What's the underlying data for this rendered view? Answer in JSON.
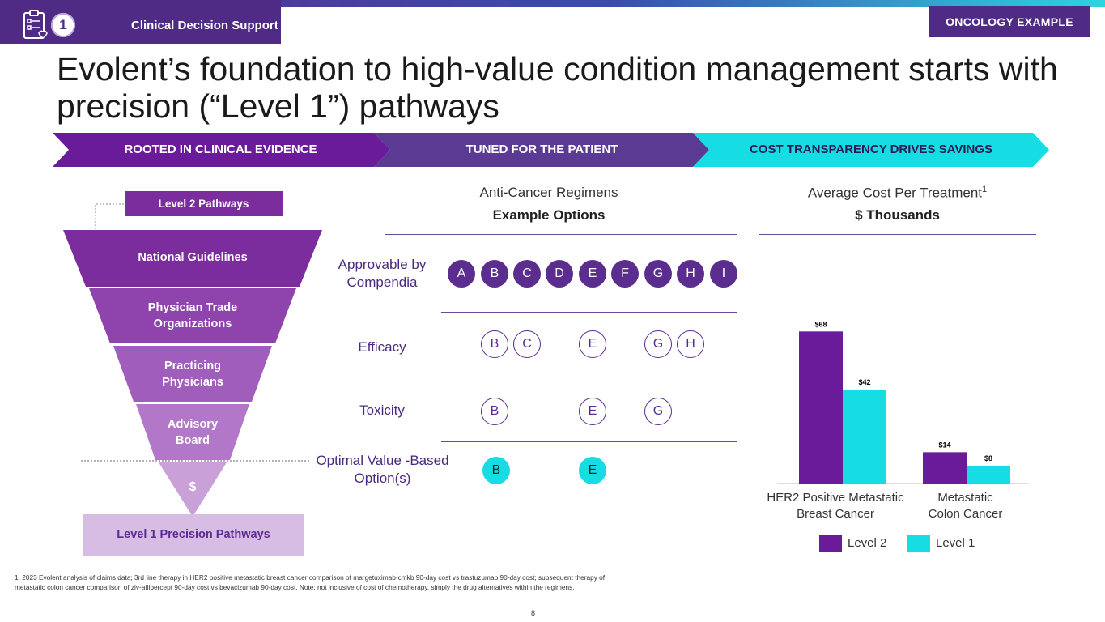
{
  "header": {
    "section_label": "Clinical Decision Support",
    "section_number": "1",
    "badge": "ONCOLOGY EXAMPLE"
  },
  "title": "Evolent’s foundation to high-value condition management starts with precision (“Level 1”) pathways",
  "chevrons": [
    "ROOTED IN CLINICAL EVIDENCE",
    "TUNED FOR THE PATIENT",
    "COST TRANSPARENCY DRIVES SAVINGS"
  ],
  "funnel": {
    "level2_label": "Level 2 Pathways",
    "layers": [
      "National Guidelines",
      "Physician Trade Organizations",
      "Practicing Physicians",
      "Advisory Board",
      "$"
    ],
    "level1_label": "Level 1 Precision Pathways"
  },
  "regimens": {
    "header": "Anti-Cancer Regimens",
    "subheader": "Example Options",
    "rows": [
      {
        "label": "Approvable by Compendia",
        "items": [
          "A",
          "B",
          "C",
          "D",
          "E",
          "F",
          "G",
          "H",
          "I"
        ]
      },
      {
        "label": "Efficacy",
        "items": [
          "B",
          "C",
          "E",
          "G",
          "H"
        ]
      },
      {
        "label": "Toxicity",
        "items": [
          "B",
          "E",
          "G"
        ]
      },
      {
        "label": "Optimal Value -Based Option(s)",
        "items": [
          "B",
          "E"
        ]
      }
    ]
  },
  "cost": {
    "header": "Average Cost Per Treatment",
    "header_sup": "1",
    "subheader": "$ Thousands"
  },
  "chart_data": {
    "type": "bar",
    "title": "Average Cost Per Treatment ($ Thousands)",
    "categories": [
      "HER2 Positive Metastatic Breast  Cancer",
      "Metastatic Colon Cancer"
    ],
    "series": [
      {
        "name": "Level 2",
        "values": [
          68,
          14
        ],
        "labels": [
          "$68",
          "$14"
        ],
        "color": "#6a1b9a"
      },
      {
        "name": "Level 1",
        "values": [
          42,
          8
        ],
        "labels": [
          "$42",
          "$8"
        ],
        "color": "#16dde4"
      }
    ],
    "ylim": [
      0,
      75
    ],
    "xlabel": "",
    "ylabel": ""
  },
  "colors": {
    "purple": "#5b2d8e",
    "teal": "#16dde4",
    "dark_purple": "#4f2b86"
  },
  "footnote": "1.    2023 Evolent analysis of claims data; 3rd line therapy in HER2 positive metastatic breast cancer comparison of margetuximab-cmkb 90-day cost vs trastuzumab 90-day cost; subsequent therapy of metastatic colon cancer comparison of ziv-aflibercept 90-day cost vs bevacizumab 90-day cost. Note: not inclusive of cost of chemotherapy, simply the drug alternatives within the regimens.",
  "page_number": "8"
}
